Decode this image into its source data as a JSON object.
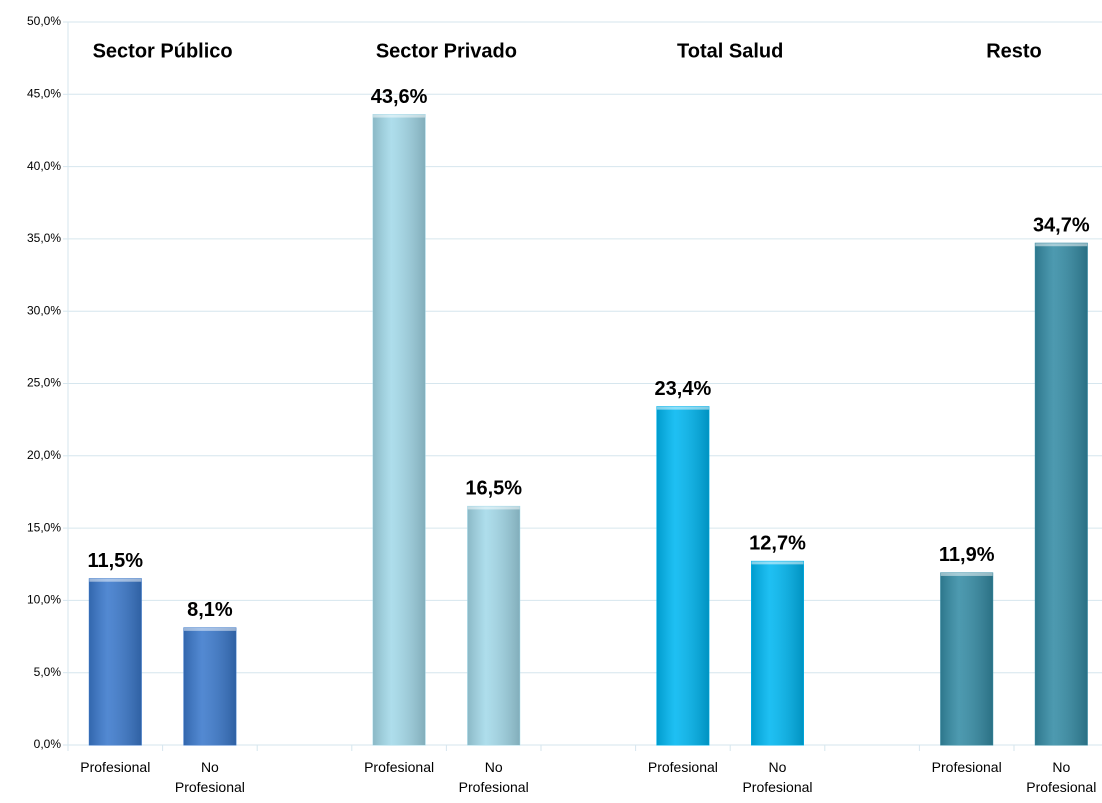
{
  "chart_data": {
    "type": "bar",
    "categories": [
      "Profesional",
      "No Profesional",
      null,
      "Profesional",
      "No Profesional",
      null,
      "Profesional",
      "No Profesional",
      null,
      "Profesional",
      "No Profesional"
    ],
    "values": [
      11.5,
      8.1,
      null,
      43.6,
      16.5,
      null,
      23.4,
      12.7,
      null,
      11.9,
      34.7
    ],
    "value_labels": [
      "11,5%",
      "8,1%",
      null,
      "43,6%",
      "16,5%",
      null,
      "23,4%",
      "12,7%",
      null,
      "11,9%",
      "34,7%"
    ],
    "colors": [
      "#3b79cc",
      "#3b79cc",
      null,
      "#a3d9e9",
      "#a3d9e9",
      null,
      "#00b7f1",
      "#00b7f1",
      null,
      "#358ca5",
      "#358ca5"
    ],
    "group_titles": [
      "Sector Público",
      "Sector Privado",
      "Total Salud",
      "Resto"
    ],
    "ylim": [
      0,
      50
    ],
    "yticks": [
      {
        "value": 0,
        "label": "0,0%"
      },
      {
        "value": 5,
        "label": "5,0%"
      },
      {
        "value": 10,
        "label": "10,0%"
      },
      {
        "value": 15,
        "label": "15,0%"
      },
      {
        "value": 20,
        "label": "20,0%"
      },
      {
        "value": 25,
        "label": "25,0%"
      },
      {
        "value": 30,
        "label": "30,0%"
      },
      {
        "value": 35,
        "label": "35,0%"
      },
      {
        "value": 40,
        "label": "40,0%"
      },
      {
        "value": 45,
        "label": "45,0%"
      },
      {
        "value": 50,
        "label": "50,0%"
      }
    ],
    "grid": true
  }
}
